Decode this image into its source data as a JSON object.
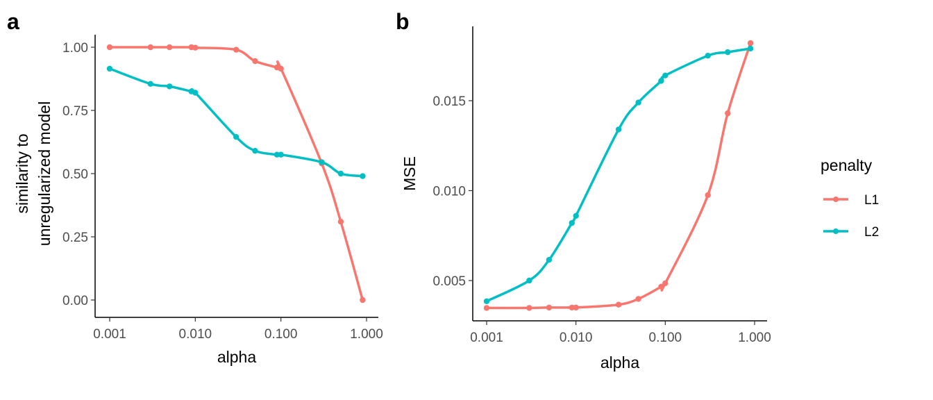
{
  "colors": {
    "L1": "#F8766D",
    "L2": "#00BFC4",
    "axis": "#000000",
    "tick_text": "#4d4d4d"
  },
  "legend": {
    "title": "penalty",
    "placement": "right",
    "items": [
      {
        "label": "L1",
        "color": "#F8766D"
      },
      {
        "label": "L2",
        "color": "#00BFC4"
      }
    ]
  },
  "chart_data": [
    {
      "panel": "a",
      "type": "scatter",
      "smooth": true,
      "xlabel": "alpha",
      "ylabel": [
        "similarity to",
        "unregularized model"
      ],
      "xscale": "log10",
      "xlim": [
        0.001,
        1.0
      ],
      "ylim": [
        0.0,
        1.0
      ],
      "xticks": [
        0.001,
        0.01,
        0.1,
        1.0
      ],
      "xtick_labels": [
        "0.001",
        "0.010",
        "0.100",
        "1.000"
      ],
      "yticks": [
        0.0,
        0.25,
        0.5,
        0.75,
        1.0
      ],
      "ytick_labels": [
        "0.00",
        "0.25",
        "0.50",
        "0.75",
        "1.00"
      ],
      "grid": false,
      "series": [
        {
          "name": "L1",
          "x": [
            0.001,
            0.003,
            0.005,
            0.009,
            0.01,
            0.03,
            0.05,
            0.09,
            0.1,
            0.3,
            0.5,
            0.9
          ],
          "y": [
            1.0,
            1.0,
            1.0,
            1.0,
            0.998,
            0.99,
            0.945,
            0.92,
            0.915,
            0.54,
            0.31,
            0.0
          ]
        },
        {
          "name": "L2",
          "x": [
            0.001,
            0.003,
            0.005,
            0.009,
            0.01,
            0.03,
            0.05,
            0.09,
            0.1,
            0.3,
            0.5,
            0.9
          ],
          "y": [
            0.915,
            0.855,
            0.845,
            0.825,
            0.82,
            0.645,
            0.59,
            0.575,
            0.575,
            0.545,
            0.5,
            0.49
          ]
        }
      ]
    },
    {
      "panel": "b",
      "type": "scatter",
      "smooth": true,
      "xlabel": "alpha",
      "ylabel": [
        "MSE"
      ],
      "xscale": "log10",
      "xlim": [
        0.001,
        1.0
      ],
      "ylim": [
        0.00325,
        0.0186
      ],
      "xticks": [
        0.001,
        0.01,
        0.1,
        1.0
      ],
      "xtick_labels": [
        "0.001",
        "0.010",
        "0.100",
        "1.000"
      ],
      "yticks": [
        0.005,
        0.01,
        0.015
      ],
      "ytick_labels": [
        "0.005",
        "0.010",
        "0.015"
      ],
      "grid": false,
      "series": [
        {
          "name": "L1",
          "x": [
            0.001,
            0.003,
            0.005,
            0.009,
            0.01,
            0.03,
            0.05,
            0.09,
            0.1,
            0.3,
            0.5,
            0.9
          ],
          "y": [
            0.00348,
            0.00348,
            0.0035,
            0.0035,
            0.0035,
            0.00366,
            0.00398,
            0.00466,
            0.00485,
            0.00975,
            0.0143,
            0.0182
          ]
        },
        {
          "name": "L2",
          "x": [
            0.001,
            0.003,
            0.005,
            0.009,
            0.01,
            0.03,
            0.05,
            0.09,
            0.1,
            0.3,
            0.5,
            0.9
          ],
          "y": [
            0.00385,
            0.005,
            0.00615,
            0.0082,
            0.0086,
            0.0134,
            0.0149,
            0.0161,
            0.0164,
            0.0175,
            0.0177,
            0.0179
          ]
        }
      ]
    }
  ]
}
